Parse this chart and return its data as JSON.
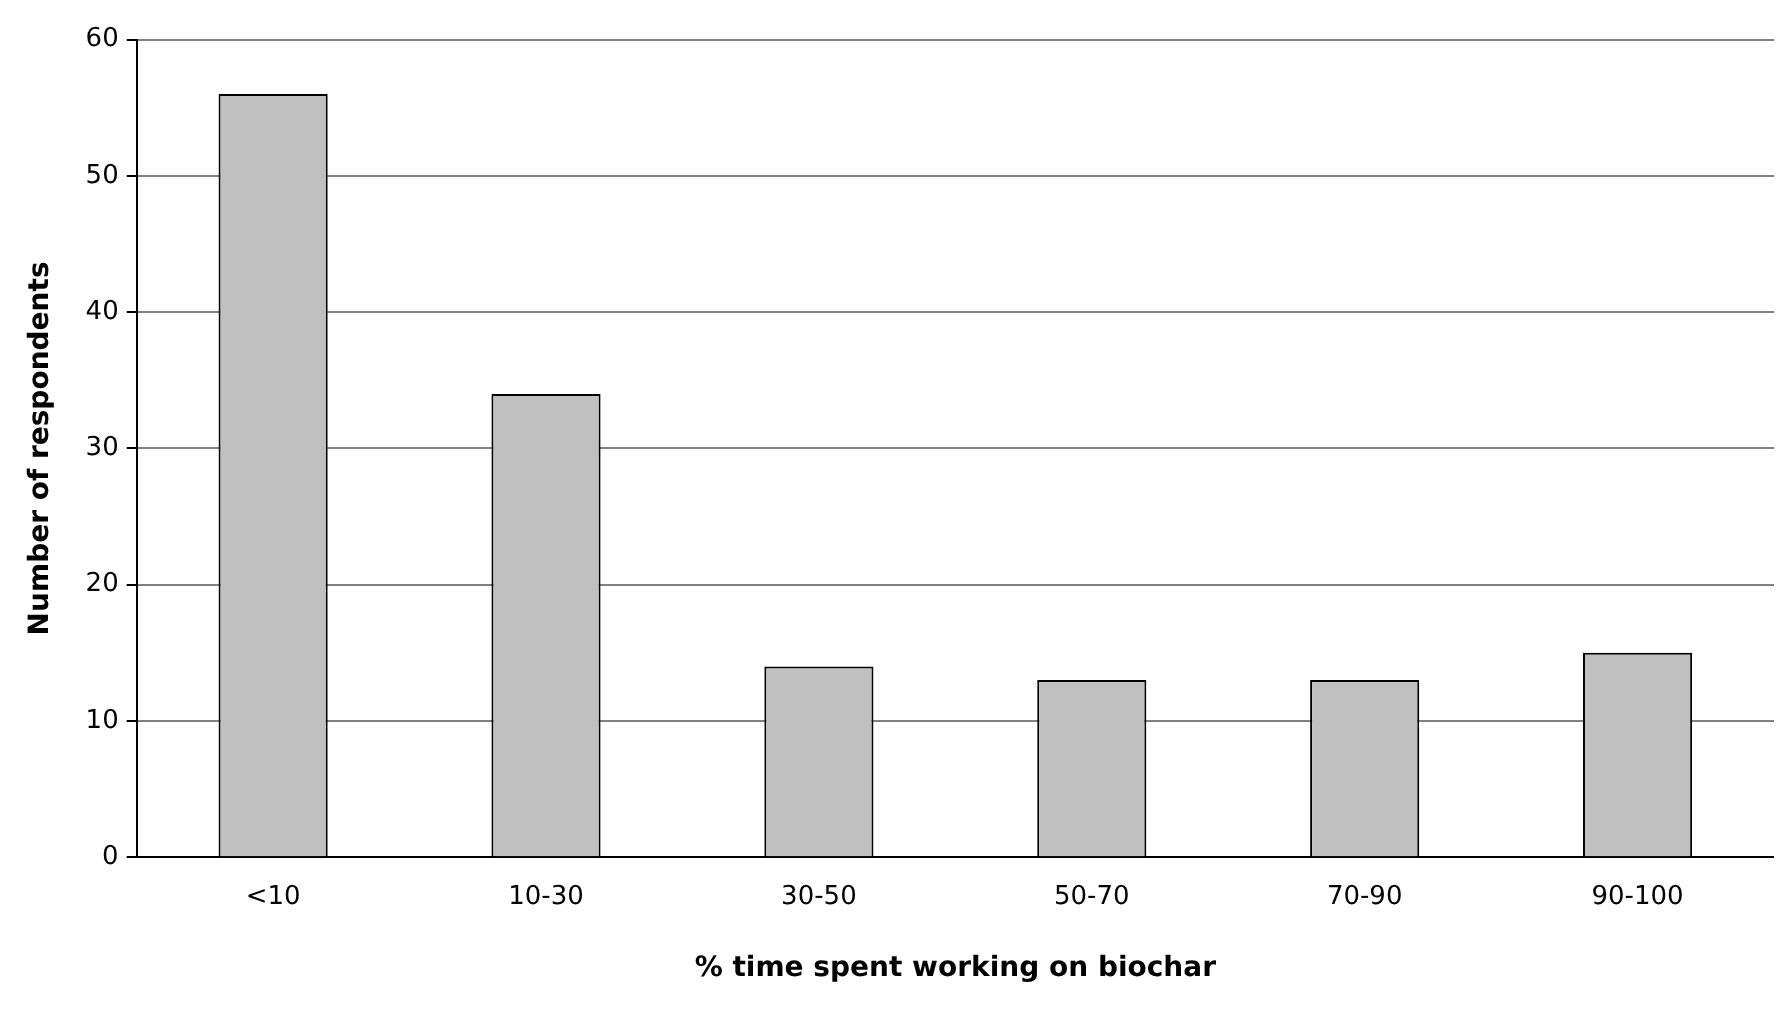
{
  "chart_data": {
    "type": "bar",
    "xlabel": "% time spent working on biochar",
    "ylabel": "Number of respondents",
    "categories": [
      "<10",
      "10-30",
      "30-50",
      "50-70",
      "70-90",
      "90-100"
    ],
    "values": [
      56,
      34,
      14,
      13,
      13,
      15
    ],
    "color": "#c0c0c0",
    "ylim": [
      0,
      60
    ],
    "yticks": [
      0,
      10,
      20,
      30,
      40,
      50,
      60
    ],
    "grid": "y",
    "legend": false
  }
}
